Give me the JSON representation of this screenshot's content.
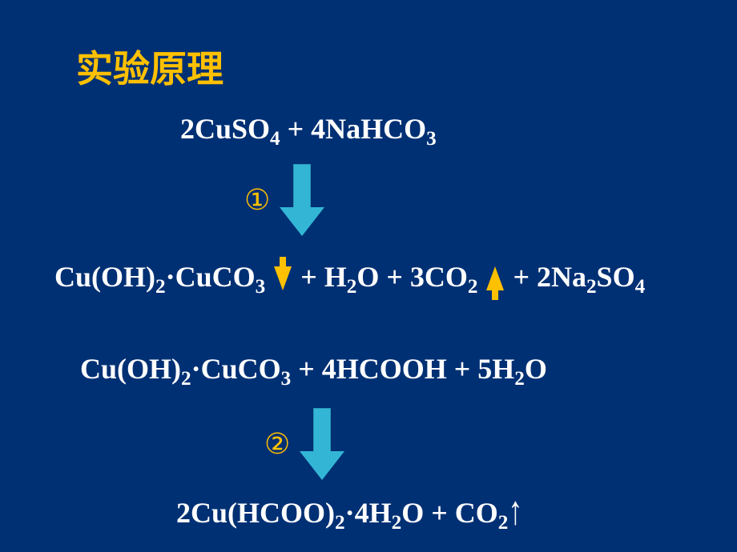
{
  "slide": {
    "background_color": "#003074",
    "title": {
      "text": "实验原理",
      "color": "#ffc000",
      "fontsize_pt": 34,
      "font_weight": "bold"
    },
    "formulas": {
      "text_color": "#ffffff",
      "fontsize_pt": 27,
      "font_weight": "bold",
      "line1": {
        "segments": [
          "2CuSO",
          "4",
          " + 4NaHCO",
          "3"
        ]
      },
      "line2": {
        "segments": [
          "Cu(OH)",
          "2",
          "·CuCO",
          "3",
          " ",
          "↓",
          " + H",
          "2",
          "O + 3CO",
          "2",
          " ",
          "↑",
          " + 2Na",
          "2",
          "SO",
          "4"
        ],
        "indicator_down_color": "#ffc000",
        "indicator_up_color": "#ffc000"
      },
      "line3": {
        "segments": [
          "Cu(OH)",
          "2",
          "·CuCO",
          "3",
          " + 4HCOOH + 5H",
          "2",
          "O"
        ]
      },
      "line4": {
        "segments": [
          "2Cu(HCOO)",
          "2",
          "·4H",
          "2",
          "O + CO",
          "2",
          "↑"
        ]
      }
    },
    "arrows": {
      "step1": {
        "label": "①",
        "label_color": "#ffc000",
        "arrow_fill": "#33b6d6",
        "arrow_border": "#2a98b3"
      },
      "step2": {
        "label": "②",
        "label_color": "#ffc000",
        "arrow_fill": "#33b6d6",
        "arrow_border": "#2a98b3"
      }
    }
  }
}
